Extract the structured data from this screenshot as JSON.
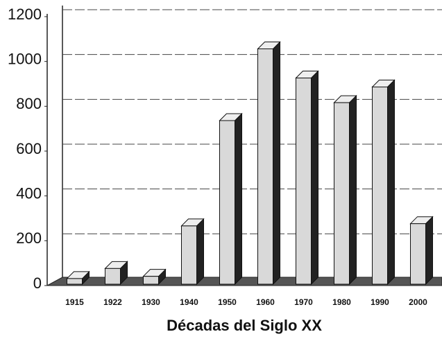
{
  "chart_data": {
    "type": "bar",
    "x_label": "Décadas del Siglo XX",
    "categories": [
      "1915",
      "1922",
      "1930",
      "1940",
      "1950",
      "1960",
      "1970",
      "1980",
      "1990",
      "2000"
    ],
    "values": [
      25,
      70,
      35,
      260,
      730,
      1050,
      920,
      810,
      880,
      270
    ],
    "color": "#d9d9d9",
    "ylim": [
      0,
      1200
    ],
    "yticks": [
      0,
      200,
      400,
      600,
      800,
      1000,
      1200
    ],
    "grid": true
  }
}
